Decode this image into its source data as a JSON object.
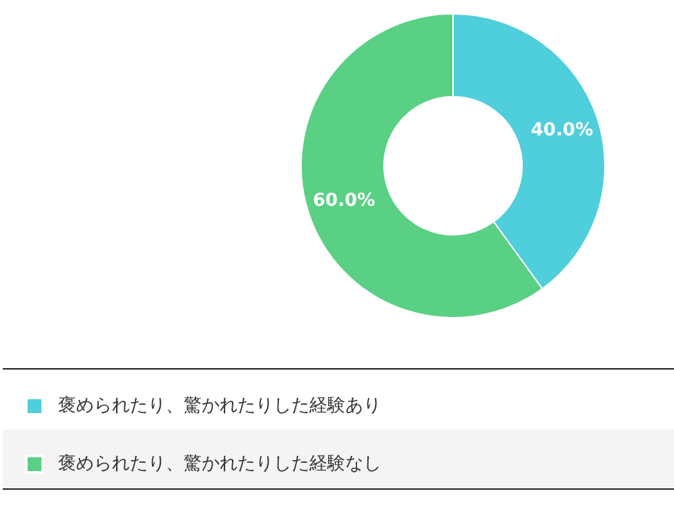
{
  "chart_data": {
    "type": "donut",
    "categories": [
      "褒められたり、驚かれたりした経験あり",
      "褒められたり、驚かれたりした経験なし"
    ],
    "values": [
      40,
      60
    ],
    "colors": [
      "#4fcedb",
      "#59d084"
    ],
    "value_labels": [
      "40.0%",
      "60.0%"
    ],
    "legend": "bottom"
  }
}
